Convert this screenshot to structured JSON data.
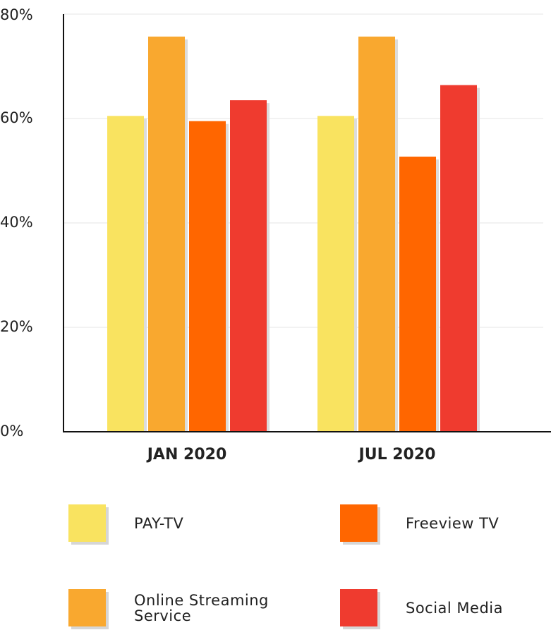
{
  "chart_data": {
    "type": "bar",
    "categories": [
      "JAN 2020",
      "JUL 2020"
    ],
    "series": [
      {
        "name": "PAY-TV",
        "color": "#f9e360",
        "values": [
          60.5,
          60.5
        ]
      },
      {
        "name": "Online Streaming Service",
        "color": "#f9a82f",
        "values": [
          75.7,
          75.7
        ]
      },
      {
        "name": "Freeview TV",
        "color": "#ff6600",
        "values": [
          59.5,
          52.7
        ]
      },
      {
        "name": "Social Media",
        "color": "#ef3b2f",
        "values": [
          63.5,
          66.4
        ]
      }
    ],
    "ylim": [
      0,
      80
    ],
    "yticks": [
      {
        "value": 0,
        "label": "0%"
      },
      {
        "value": 20,
        "label": "20%"
      },
      {
        "value": 40,
        "label": "40%"
      },
      {
        "value": 60,
        "label": "60%"
      },
      {
        "value": 80,
        "label": "80%"
      }
    ],
    "grid": true
  }
}
